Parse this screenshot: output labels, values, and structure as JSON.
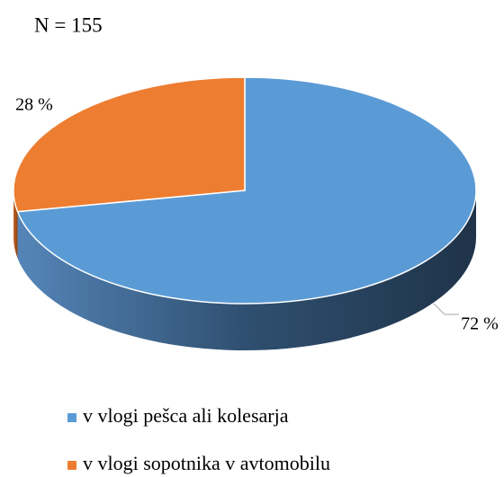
{
  "chart_data": {
    "type": "pie",
    "title": "N = 155",
    "categories": [
      "v vlogi pešca ali kolesarja",
      "v vlogi sopotnika v avtomobilu"
    ],
    "values": [
      72,
      28
    ],
    "value_labels": [
      "72 %",
      "28 %"
    ],
    "colors": [
      "#5b9bd5",
      "#ed7d31"
    ]
  }
}
